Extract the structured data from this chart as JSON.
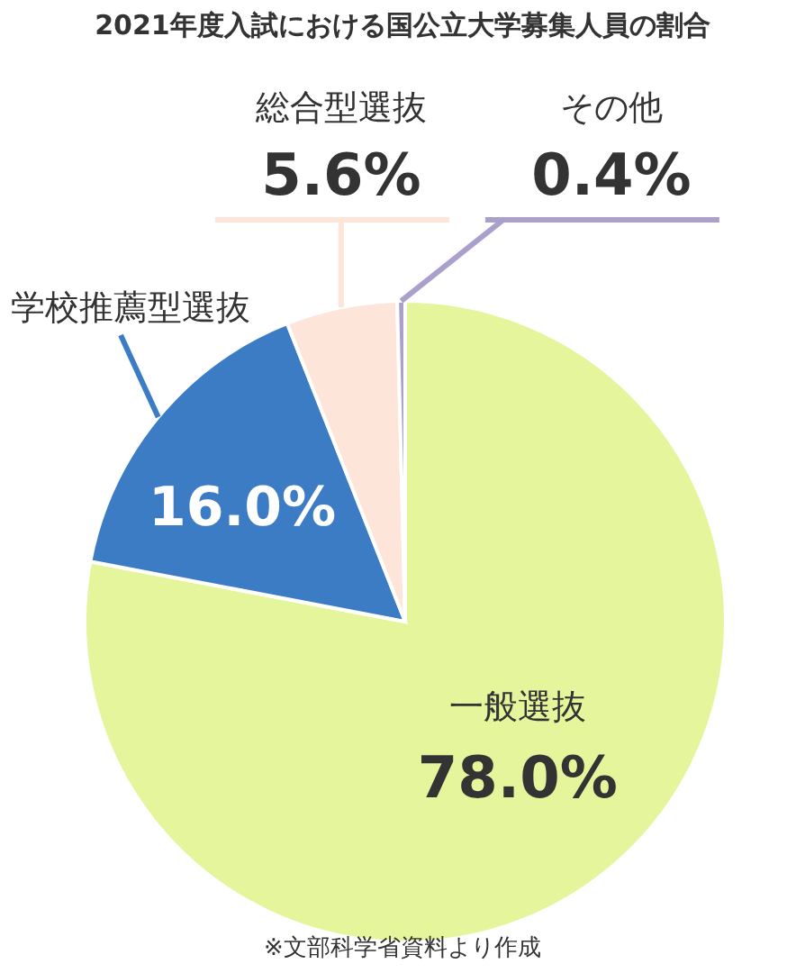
{
  "chart_data": {
    "type": "pie",
    "title": "2021年度入試における国公立大学募集人員の割合",
    "categories": [
      "一般選抜",
      "学校推薦型選抜",
      "総合型選抜",
      "その他"
    ],
    "values": [
      78.0,
      16.0,
      5.6,
      0.4
    ],
    "colors": [
      "#e5f59c",
      "#3b7cc4",
      "#fde5da",
      "#ab9fcc"
    ],
    "value_labels": [
      "78.0%",
      "16.0%",
      "5.6%",
      "0.4%"
    ],
    "annotations": [
      "※文部科学省資料より作成"
    ]
  }
}
